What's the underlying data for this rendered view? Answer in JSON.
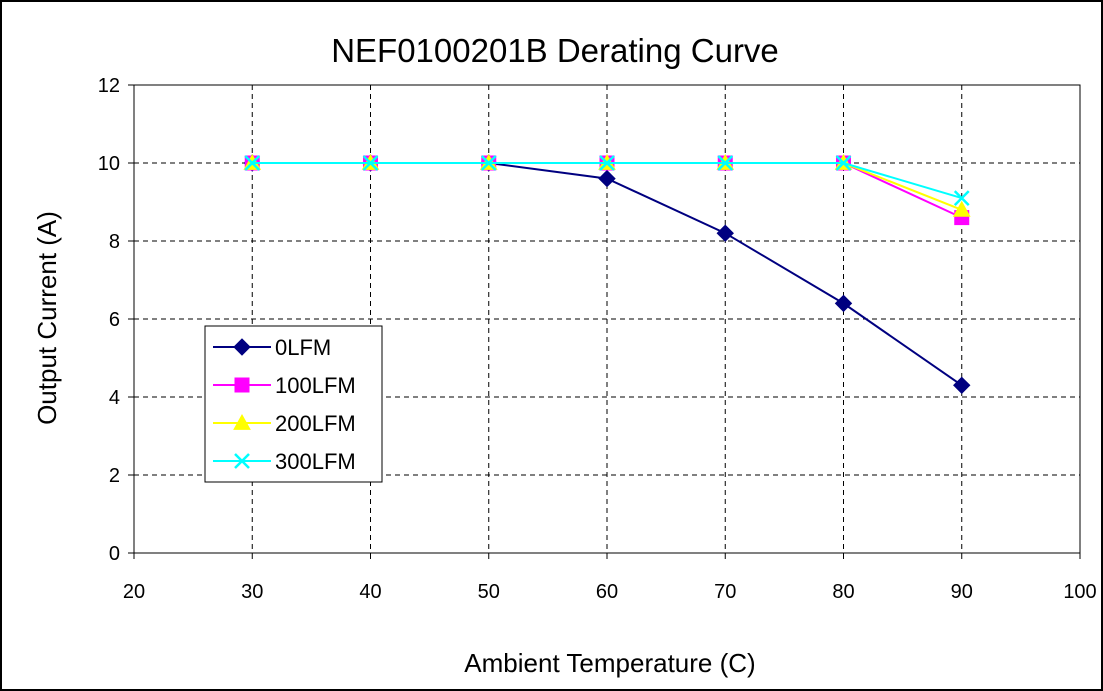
{
  "chart_data": {
    "type": "line",
    "title": "NEF0100201B Derating Curve",
    "xlabel": "Ambient Temperature (C)",
    "ylabel": "Output Current (A)",
    "xlim": [
      20,
      100
    ],
    "ylim": [
      0,
      12
    ],
    "xticks": [
      20,
      30,
      40,
      50,
      60,
      70,
      80,
      90,
      100
    ],
    "yticks": [
      0,
      2,
      4,
      6,
      8,
      10,
      12
    ],
    "grid": true,
    "grid_style": "dashed",
    "legend_position": "lower-left",
    "series": [
      {
        "name": "0LFM",
        "color": "#000080",
        "marker": "diamond",
        "x": [
          30,
          40,
          50,
          60,
          70,
          80,
          90
        ],
        "y": [
          10,
          10,
          10,
          9.6,
          8.2,
          6.4,
          4.3
        ]
      },
      {
        "name": "100LFM",
        "color": "#FF00FF",
        "marker": "square",
        "x": [
          30,
          40,
          50,
          60,
          70,
          80,
          90
        ],
        "y": [
          10,
          10,
          10,
          10,
          10,
          10,
          8.6
        ]
      },
      {
        "name": "200LFM",
        "color": "#FFFF00",
        "marker": "triangle",
        "x": [
          30,
          40,
          50,
          60,
          70,
          80,
          90
        ],
        "y": [
          10,
          10,
          10,
          10,
          10,
          10,
          8.8
        ]
      },
      {
        "name": "300LFM",
        "color": "#00FFFF",
        "marker": "x",
        "x": [
          30,
          40,
          50,
          60,
          70,
          80,
          90
        ],
        "y": [
          10,
          10,
          10,
          10,
          10,
          10,
          9.1
        ]
      }
    ]
  }
}
